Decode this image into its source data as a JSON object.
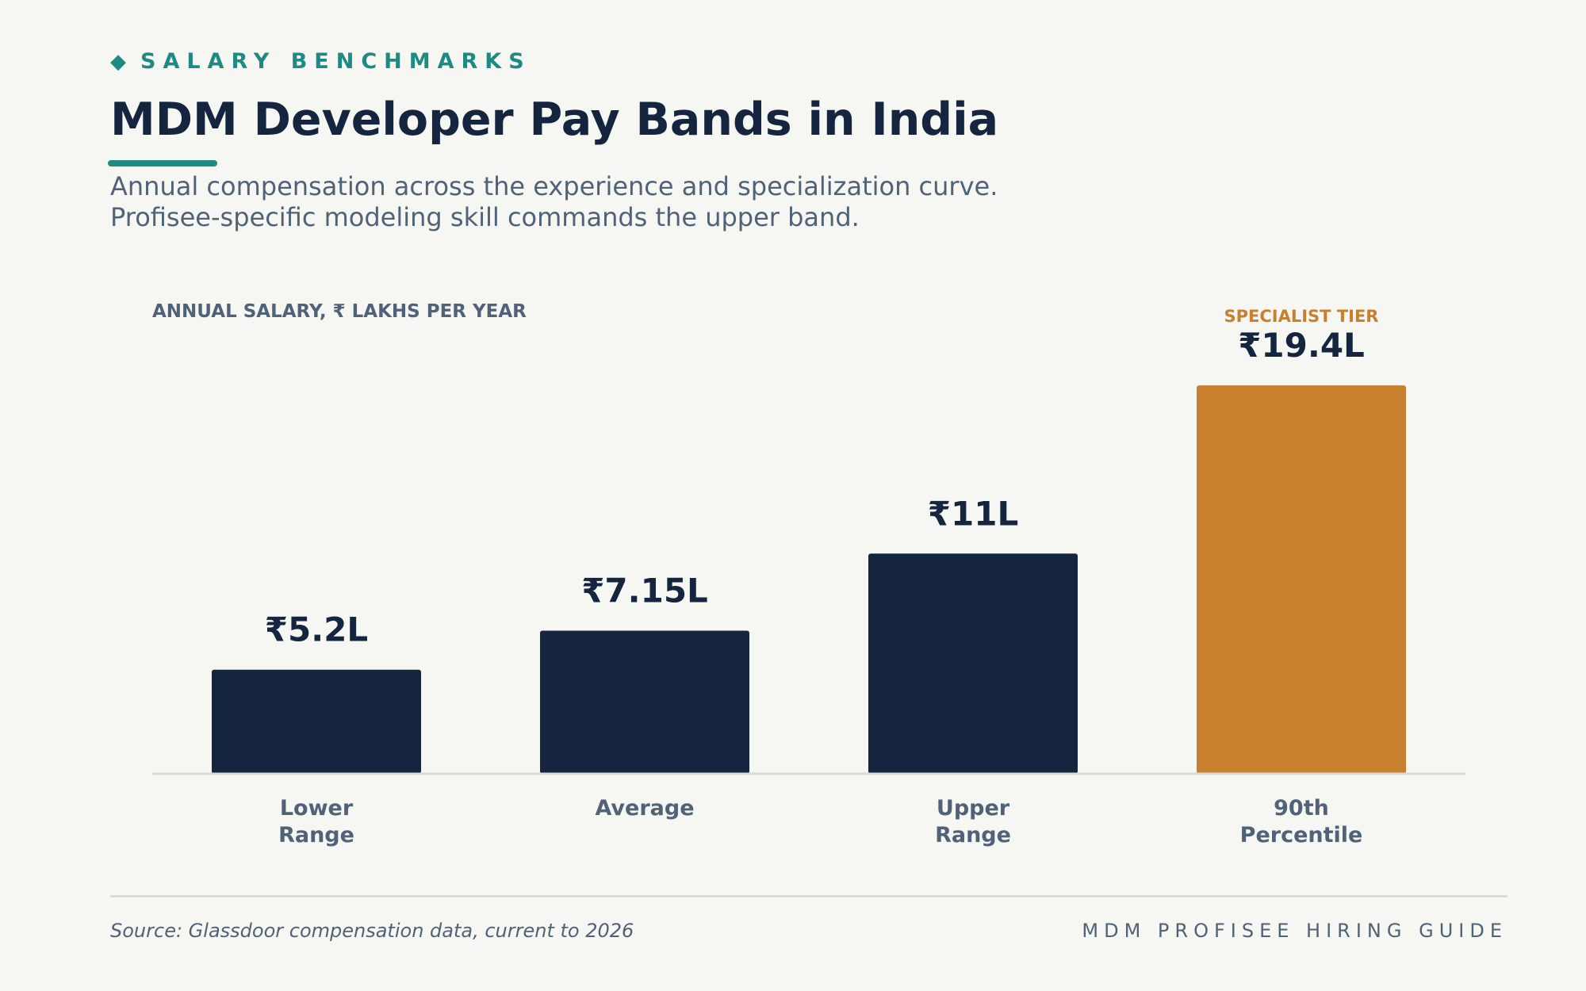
{
  "header": {
    "eyebrow": "SALARY BENCHMARKS",
    "eyebrow_icon": "diamond-icon",
    "title": "MDM Developer Pay Bands in India",
    "subtitle_lines": [
      "Annual compensation across the experience and specialization curve.",
      "Profisee-specific modeling skill commands the upper band."
    ]
  },
  "chart_data": {
    "type": "bar",
    "ylabel": "ANNUAL SALARY, ₹ LAKHS PER YEAR",
    "categories": [
      [
        "Lower",
        "Range"
      ],
      [
        "Average"
      ],
      [
        "Upper",
        "Range"
      ],
      [
        "90th",
        "Percentile"
      ]
    ],
    "values": [
      5.2,
      7.15,
      11,
      19.4
    ],
    "data_labels": [
      "₹5.2L",
      "₹7.15L",
      "₹11L",
      "₹19.4L"
    ],
    "highlight": {
      "index": 3,
      "label": "SPECIALIST TIER"
    },
    "ylim": [
      0,
      20
    ],
    "grid": false,
    "colors": {
      "bar": "#15253f",
      "highlight": "#c8802e",
      "axis": "#d9dbd6",
      "label": "#506278",
      "value": "#15253f"
    }
  },
  "footer": {
    "source": "Source: Glassdoor compensation data, current to 2026",
    "brand": "MDM PROFISEE HIRING GUIDE"
  }
}
